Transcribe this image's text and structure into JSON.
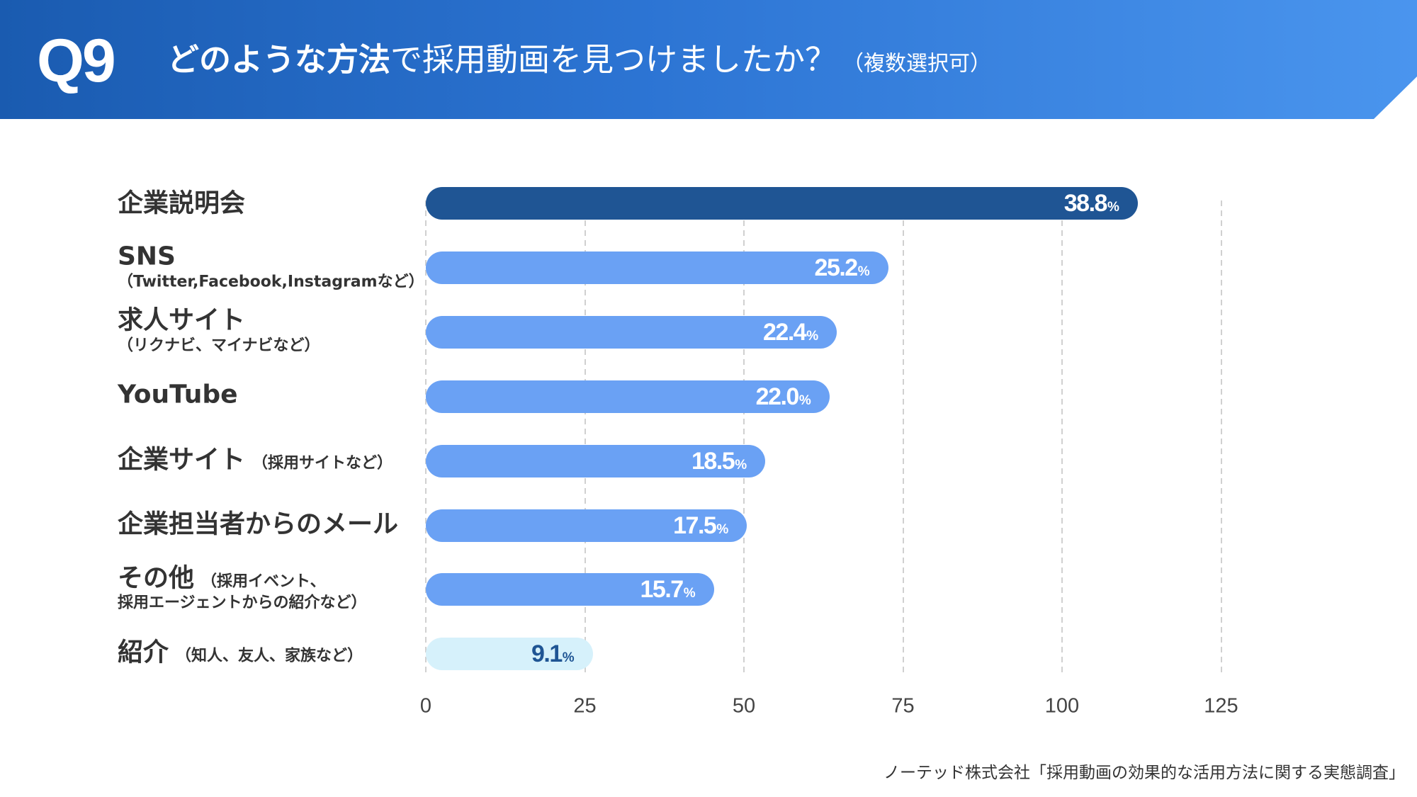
{
  "header": {
    "question_number": "Q9"
  },
  "chart_data": {
    "type": "bar",
    "title": {
      "emphasis": "どのような方法",
      "rest": "で採用動画を見つけましたか？",
      "note": "（複数選択可）"
    },
    "categories": [
      {
        "label": "企業説明会",
        "note": []
      },
      {
        "label": "SNS",
        "note": [
          "（Twitter,Facebook,Instagramなど）"
        ]
      },
      {
        "label": "求人サイト",
        "note": [
          "（リクナビ、マイナビなど）"
        ]
      },
      {
        "label": "YouTube",
        "note": []
      },
      {
        "label": "企業サイト",
        "note": [
          "（採用サイトなど）"
        ]
      },
      {
        "label": "企業担当者からのメール",
        "note": []
      },
      {
        "label": "その他",
        "note": [
          "（採用イベント、",
          "採用エージェントからの紹介など）"
        ]
      },
      {
        "label": "紹介",
        "note": [
          "（知人、友人、家族など）"
        ]
      }
    ],
    "values": [
      38.8,
      25.2,
      22.4,
      22.0,
      18.5,
      17.5,
      15.7,
      9.1
    ],
    "value_suffix": "%",
    "x_ticks": [
      0,
      25,
      50,
      75,
      100,
      125
    ],
    "xlim": [
      0,
      125
    ],
    "grid": true,
    "bar_colors": [
      "#1f5594",
      "#6aa1f4",
      "#6aa1f4",
      "#6aa1f4",
      "#6aa1f4",
      "#6aa1f4",
      "#6aa1f4",
      "#d6f1fb"
    ],
    "value_label_colors": [
      "#ffffff",
      "#ffffff",
      "#ffffff",
      "#ffffff",
      "#ffffff",
      "#ffffff",
      "#ffffff",
      "#1f5594"
    ]
  },
  "source": "ノーテッド株式会社「採用動画の効果的な活用方法に関する実態調査」"
}
